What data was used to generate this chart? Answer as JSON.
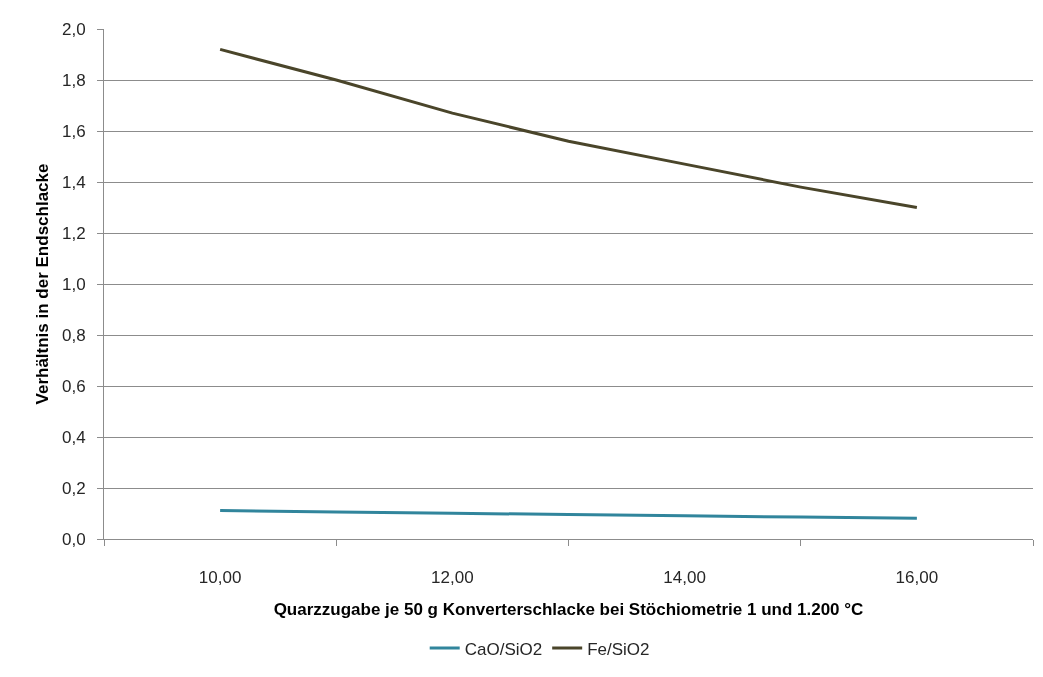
{
  "chart_data": {
    "type": "line",
    "xlabel": "Quarzzugabe je 50 g Konverterschlacke bei Stöchiometrie 1 und 1.200 °C",
    "ylabel": "Verhältnis in der Endschlacke",
    "x": [
      10,
      11,
      12,
      13,
      14,
      15,
      16
    ],
    "series": [
      {
        "name": "CaO/SiO2",
        "color": "#31859c",
        "values": [
          0.112,
          0.106,
          0.101,
          0.096,
          0.091,
          0.086,
          0.081
        ]
      },
      {
        "name": "Fe/SiO2",
        "color": "#4a452a",
        "values": [
          1.92,
          1.8,
          1.67,
          1.56,
          1.47,
          1.38,
          1.3
        ]
      }
    ],
    "xlim": [
      9,
      17
    ],
    "xticks": [
      {
        "value": 9,
        "label": null
      },
      {
        "value": 10,
        "label": "10,00"
      },
      {
        "value": 11,
        "label": null
      },
      {
        "value": 12,
        "label": "12,00"
      },
      {
        "value": 13,
        "label": null
      },
      {
        "value": 14,
        "label": "14,00"
      },
      {
        "value": 15,
        "label": null
      },
      {
        "value": 16,
        "label": "16,00"
      },
      {
        "value": 17,
        "label": null
      }
    ],
    "ylim": [
      0,
      2
    ],
    "yticks": [
      {
        "value": 0,
        "label": "0,0"
      },
      {
        "value": 0.2,
        "label": "0,2"
      },
      {
        "value": 0.4,
        "label": "0,4"
      },
      {
        "value": 0.6,
        "label": "0,6"
      },
      {
        "value": 0.8,
        "label": "0,8"
      },
      {
        "value": 1,
        "label": "1,0"
      },
      {
        "value": 1.2,
        "label": "1,2"
      },
      {
        "value": 1.4,
        "label": "1,4"
      },
      {
        "value": 1.6,
        "label": "1,6"
      },
      {
        "value": 1.8,
        "label": "1,8"
      },
      {
        "value": 2,
        "label": "2,0"
      }
    ],
    "grid": "y",
    "legend": "bottom"
  }
}
